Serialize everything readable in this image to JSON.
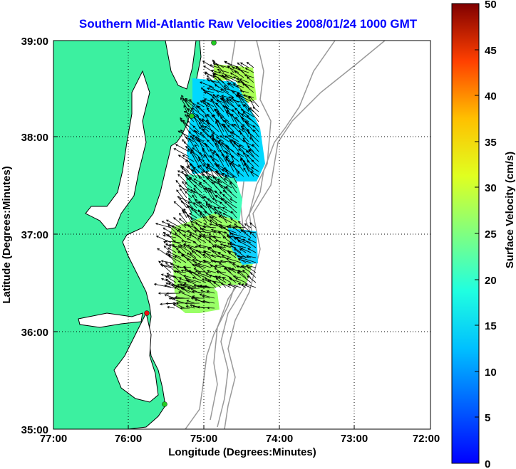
{
  "title": "Southern Mid-Atlantic Raw Velocities 2008/01/24 1000 GMT",
  "x_axis": {
    "label": "Longitude (Degrees:Minutes)",
    "ticks": [
      "77:00",
      "76:00",
      "75:00",
      "74:00",
      "73:00",
      "72:00"
    ]
  },
  "y_axis": {
    "label": "Latitude (Degrees:Minutes)",
    "ticks": [
      "39:00",
      "38:00",
      "37:00",
      "36:00",
      "35:00"
    ]
  },
  "colorbar": {
    "label": "Surface Velocity (cm/s)",
    "ticks": [
      "50",
      "45",
      "40",
      "35",
      "30",
      "25",
      "20",
      "15",
      "10",
      "5",
      "0"
    ],
    "min": 0,
    "max": 50,
    "colormap": "jet"
  },
  "colors": {
    "land": "#3cf0a0",
    "title": "#0000ff",
    "bathymetry": "#999999",
    "station_green": "#22cc22",
    "station_red": "#ee1111"
  },
  "stations": [
    {
      "lon": -74.87,
      "lat": 38.98,
      "color": "green"
    },
    {
      "lon": -75.09,
      "lat": 38.2,
      "color": "green"
    },
    {
      "lon": -75.72,
      "lat": 36.19,
      "color": "red"
    },
    {
      "lon": -75.49,
      "lat": 35.31,
      "color": "green"
    }
  ]
}
